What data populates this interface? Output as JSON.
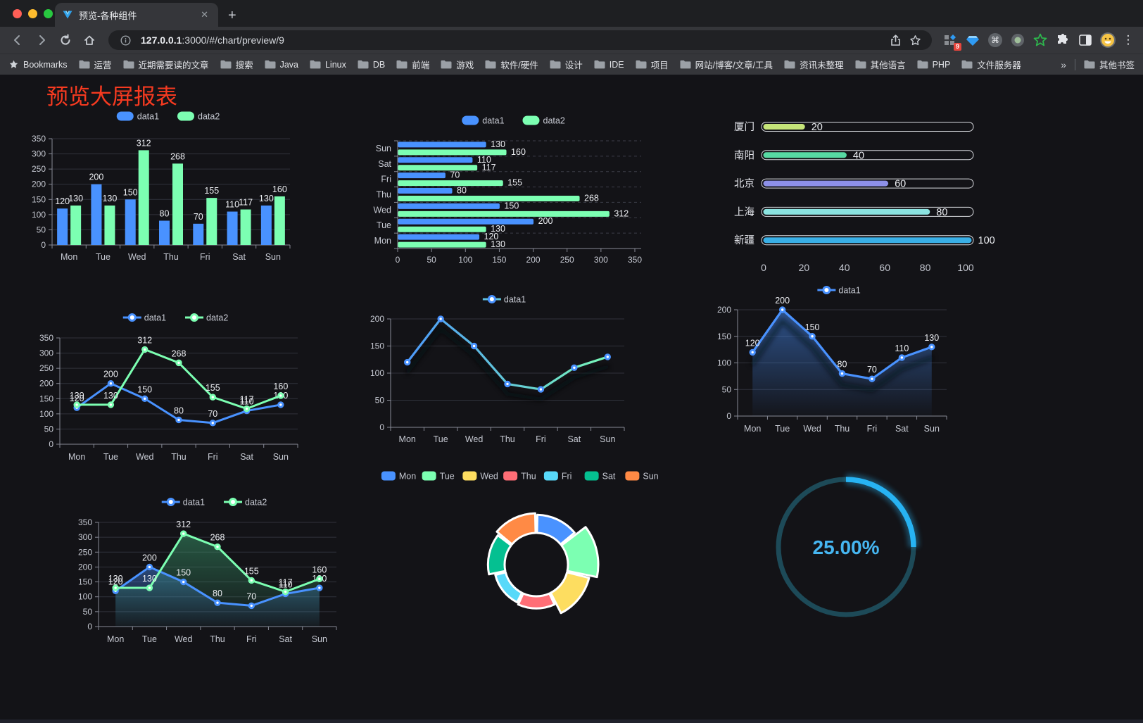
{
  "browser": {
    "tab_title": "预览-各种组件",
    "close_tab": "✕",
    "new_tab": "+",
    "url_host": "127.0.0.1",
    "url_rest": ":3000/#/chart/preview/9",
    "extension_badge": "9",
    "bookmarks_label": "Bookmarks",
    "bookmark_folders": [
      "运营",
      "近期需要读的文章",
      "搜索",
      "Java",
      "Linux",
      "DB",
      "前端",
      "游戏",
      "软件/硬件",
      "设计",
      "IDE",
      "项目",
      "网站/博客/文章/工具",
      "资讯未整理",
      "其他语言",
      "PHP",
      "文件服务器"
    ],
    "overflow_chevron": "»",
    "other_bookmarks": "其他书签",
    "menu_dots": "⋮"
  },
  "page": {
    "title": "预览大屏报表",
    "title_color": "#f63a20",
    "background": "#131317"
  },
  "chart_data": [
    {
      "type": "bar",
      "legend": [
        "data1",
        "data2"
      ],
      "legend_position": "top",
      "categories": [
        "Mon",
        "Tue",
        "Wed",
        "Thu",
        "Fri",
        "Sat",
        "Sun"
      ],
      "series": [
        {
          "name": "data1",
          "color": "#4992ff",
          "values": [
            120,
            200,
            150,
            80,
            70,
            110,
            130
          ]
        },
        {
          "name": "data2",
          "color": "#7cffb2",
          "values": [
            130,
            130,
            312,
            268,
            155,
            117,
            160
          ]
        }
      ],
      "ylim": [
        0,
        350
      ],
      "ystep": 50,
      "grid": true,
      "value_labels": true
    },
    {
      "type": "bar-horizontal",
      "legend": [
        "data1",
        "data2"
      ],
      "legend_position": "top",
      "categories": [
        "Mon",
        "Tue",
        "Wed",
        "Thu",
        "Fri",
        "Sat",
        "Sun"
      ],
      "series": [
        {
          "name": "data1",
          "color": "#4992ff",
          "values": [
            120,
            200,
            150,
            80,
            70,
            110,
            130
          ]
        },
        {
          "name": "data2",
          "color": "#7cffb2",
          "values": [
            130,
            130,
            312,
            268,
            155,
            117,
            160
          ]
        }
      ],
      "xlim": [
        0,
        350
      ],
      "xstep": 50,
      "grid": true,
      "value_labels": true
    },
    {
      "type": "progress",
      "rows": [
        {
          "label": "厦门",
          "value": 20,
          "color": "#c6e579"
        },
        {
          "label": "南阳",
          "value": 40,
          "color": "#57d9a3"
        },
        {
          "label": "北京",
          "value": 60,
          "color": "#8d90e8"
        },
        {
          "label": "上海",
          "value": 80,
          "color": "#8be3e0"
        },
        {
          "label": "新疆",
          "value": 100,
          "color": "#39afe6"
        }
      ],
      "xlim": [
        0,
        100
      ],
      "xticks": [
        0,
        20,
        40,
        60,
        80,
        100
      ]
    },
    {
      "type": "line",
      "legend": [
        "data1",
        "data2"
      ],
      "legend_position": "top",
      "categories": [
        "Mon",
        "Tue",
        "Wed",
        "Thu",
        "Fri",
        "Sat",
        "Sun"
      ],
      "series": [
        {
          "name": "data1",
          "color": "#4992ff",
          "values": [
            120,
            200,
            150,
            80,
            70,
            110,
            130
          ]
        },
        {
          "name": "data2",
          "color": "#7cffb2",
          "values": [
            130,
            130,
            312,
            268,
            155,
            117,
            160
          ]
        }
      ],
      "ylim": [
        0,
        350
      ],
      "ystep": 50,
      "grid": true,
      "value_labels": true
    },
    {
      "type": "line-gradient",
      "legend": [
        "data1"
      ],
      "legend_position": "top",
      "categories": [
        "Mon",
        "Tue",
        "Wed",
        "Thu",
        "Fri",
        "Sat",
        "Sun"
      ],
      "series": [
        {
          "name": "data1",
          "gradient": [
            "#4992ff",
            "#7cffb2"
          ],
          "values": [
            120,
            200,
            150,
            80,
            70,
            110,
            130
          ]
        }
      ],
      "ylim": [
        0,
        200
      ],
      "ystep": 50,
      "grid": true,
      "value_labels": false,
      "shadow": true
    },
    {
      "type": "line-area",
      "legend": [
        "data1"
      ],
      "legend_position": "top",
      "categories": [
        "Mon",
        "Tue",
        "Wed",
        "Thu",
        "Fri",
        "Sat",
        "Sun"
      ],
      "series": [
        {
          "name": "data1",
          "color": "#4992ff",
          "values": [
            120,
            200,
            150,
            80,
            70,
            110,
            130
          ]
        }
      ],
      "ylim": [
        0,
        200
      ],
      "ystep": 50,
      "grid": true,
      "value_labels": true,
      "shadow": true
    },
    {
      "type": "line-area-multi",
      "legend": [
        "data1",
        "data2"
      ],
      "legend_position": "top",
      "categories": [
        "Mon",
        "Tue",
        "Wed",
        "Thu",
        "Fri",
        "Sat",
        "Sun"
      ],
      "series": [
        {
          "name": "data1",
          "color": "#4992ff",
          "values": [
            120,
            200,
            150,
            80,
            70,
            110,
            130
          ]
        },
        {
          "name": "data2",
          "color": "#7cffb2",
          "values": [
            130,
            130,
            312,
            268,
            155,
            117,
            160
          ]
        }
      ],
      "ylim": [
        0,
        350
      ],
      "ystep": 50,
      "grid": true,
      "value_labels": true
    },
    {
      "type": "rose",
      "legend": [
        "Mon",
        "Tue",
        "Wed",
        "Thu",
        "Fri",
        "Sat",
        "Sun"
      ],
      "legend_position": "top",
      "categories": [
        "Mon",
        "Tue",
        "Wed",
        "Thu",
        "Fri",
        "Sat",
        "Sun"
      ],
      "values": [
        120,
        200,
        150,
        80,
        70,
        110,
        130
      ],
      "colors": [
        "#4992ff",
        "#7cffb2",
        "#fddd60",
        "#ff6e76",
        "#58d9f9",
        "#05c091",
        "#ff8a45"
      ],
      "border_color": "#ffffff"
    },
    {
      "type": "ring",
      "percent": 25,
      "label": "25.00%",
      "color": "#27b3f3",
      "track_color": "#1d4a58",
      "text_color": "#46b6f1"
    }
  ]
}
